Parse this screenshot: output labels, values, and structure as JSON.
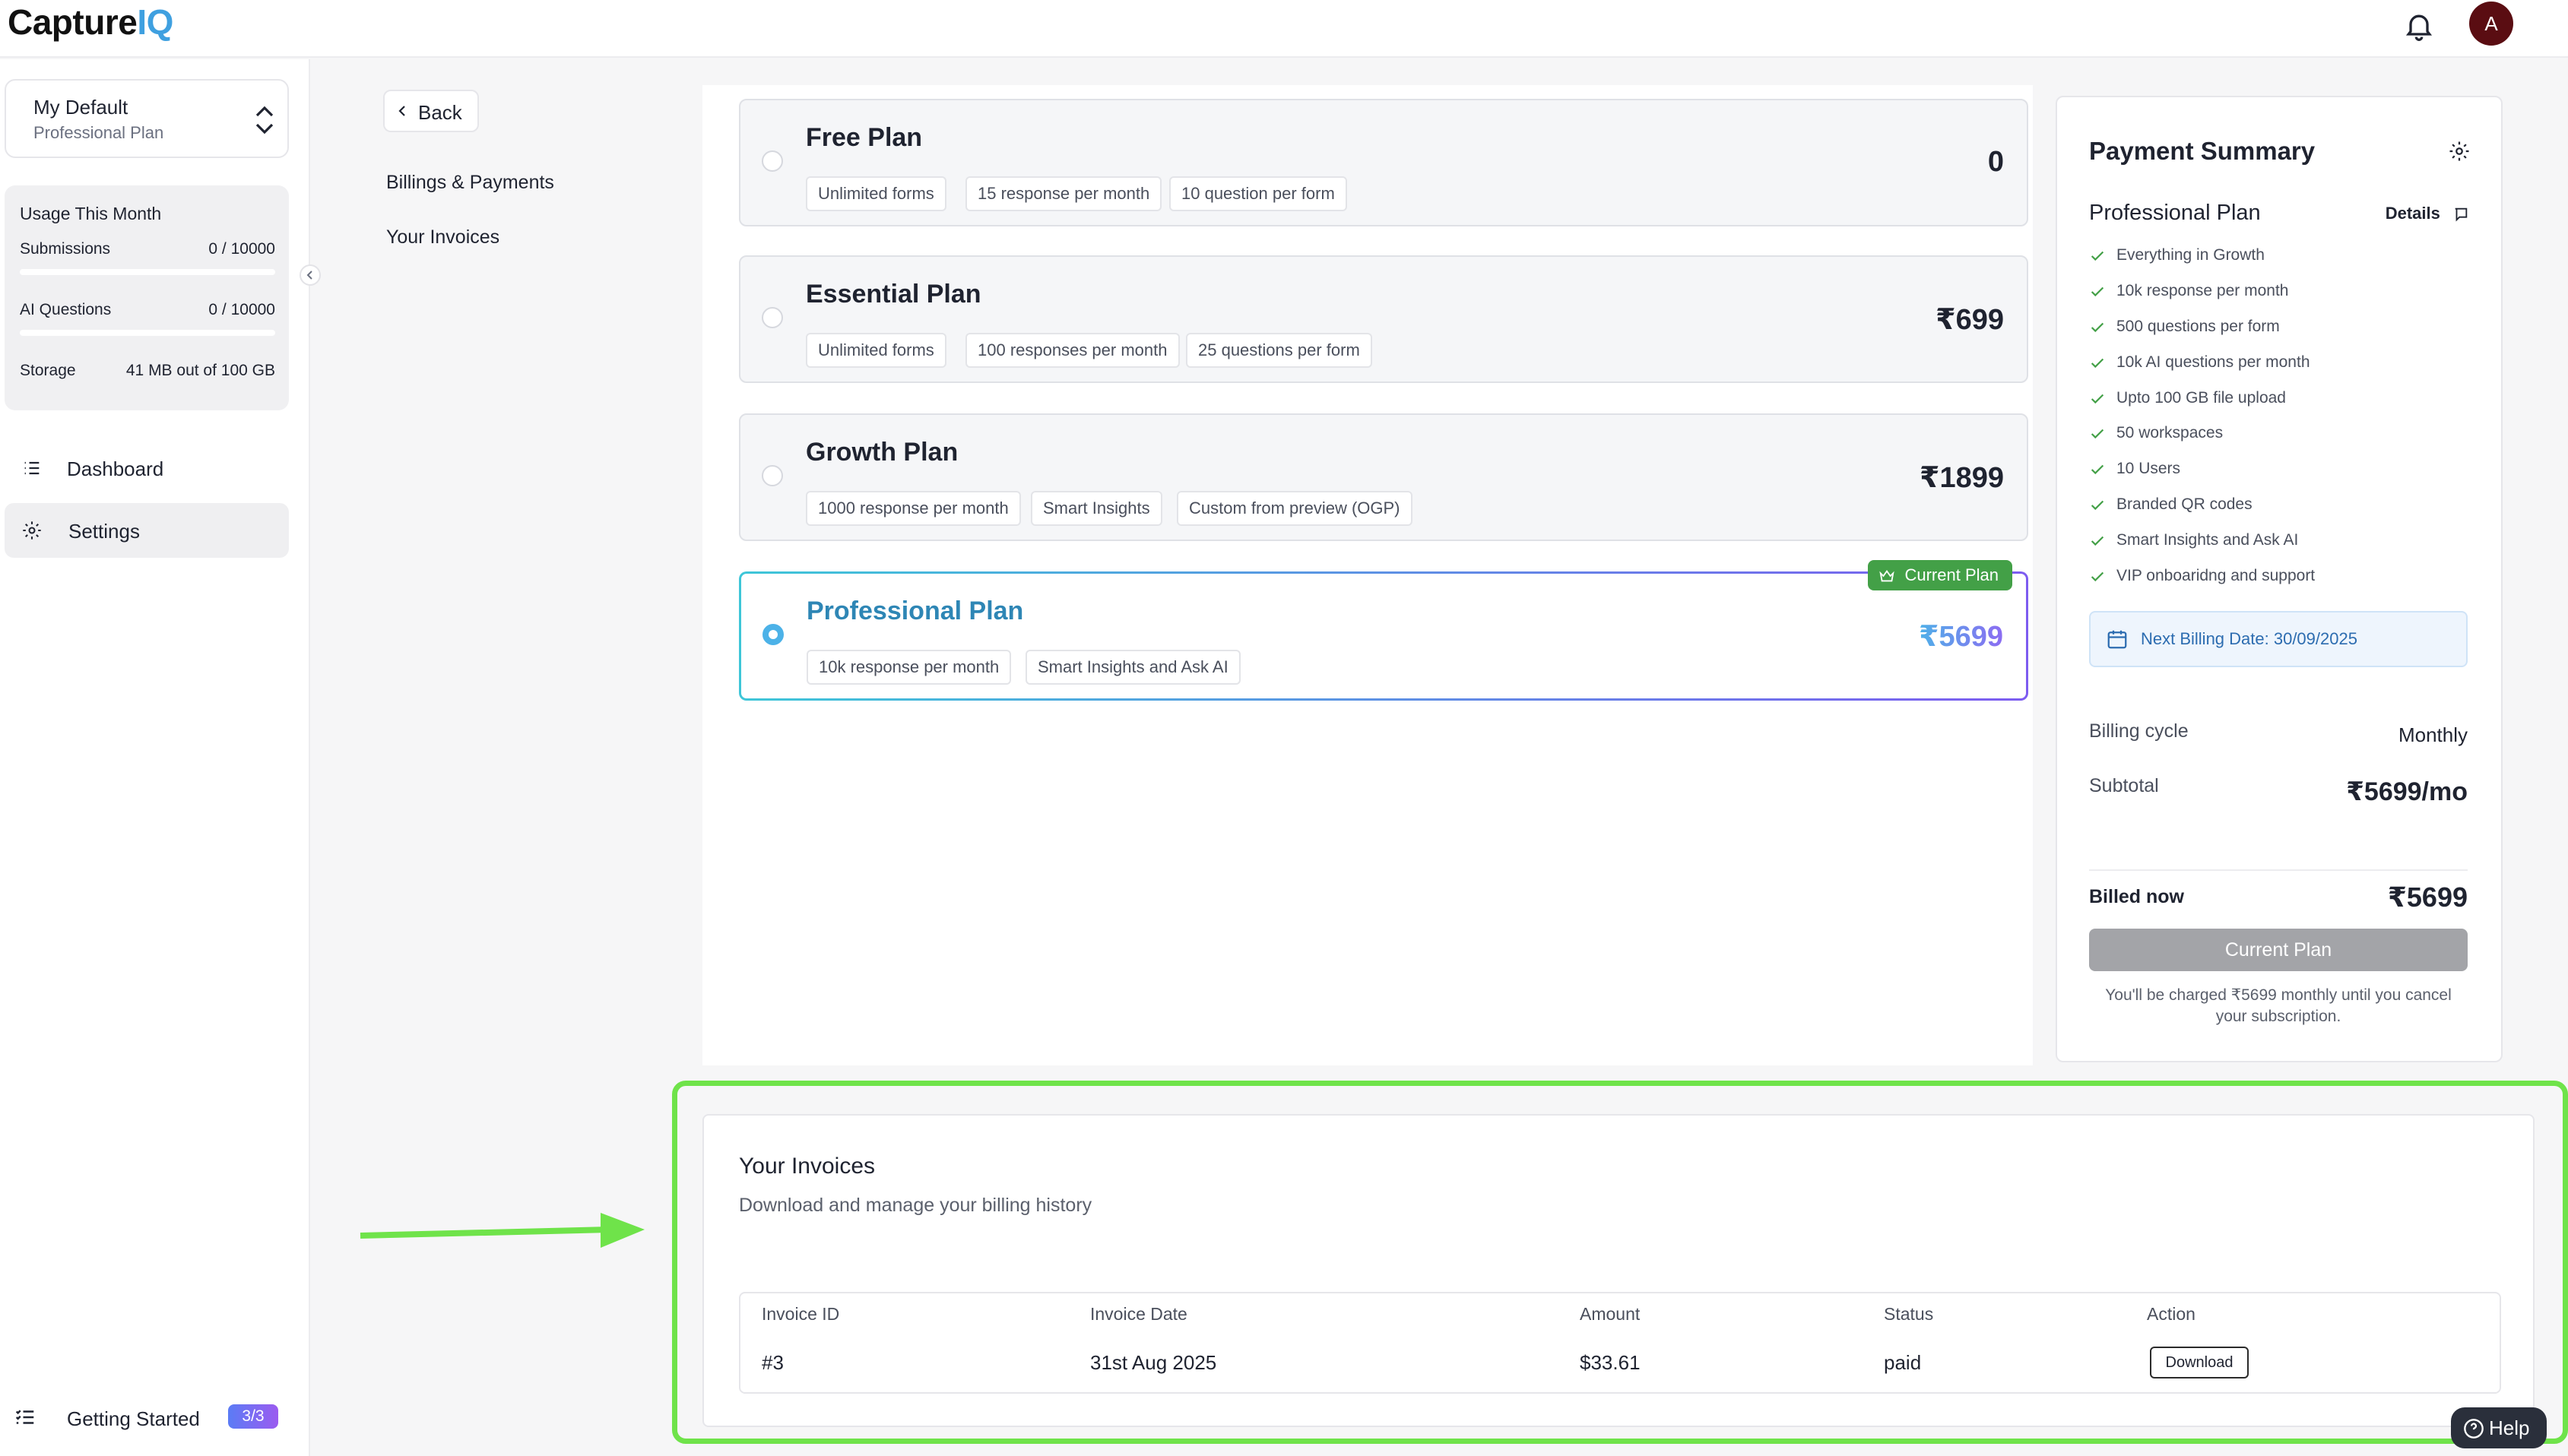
{
  "app": {
    "logo_main": "Capture",
    "logo_accent": "IQ",
    "avatar_initial": "A"
  },
  "workspace": {
    "name": "My Default",
    "plan": "Professional Plan"
  },
  "usage": {
    "title": "Usage This Month",
    "submissions_label": "Submissions",
    "submissions_value": "0 / 10000",
    "submissions_fraction": 0,
    "ai_label": "AI Questions",
    "ai_value": "0 / 10000",
    "ai_fraction": 0,
    "storage_label": "Storage",
    "storage_value": "41 MB out of 100 GB"
  },
  "nav": {
    "dashboard": "Dashboard",
    "settings": "Settings",
    "getting_started": "Getting Started",
    "getting_started_badge": "3/3"
  },
  "subnav": {
    "back": "Back",
    "billings": "Billings & Payments",
    "invoices": "Your Invoices"
  },
  "plans": {
    "free": {
      "name": "Free Plan",
      "price": "0",
      "features": [
        "Unlimited forms",
        "15 response per month",
        "10 question per form"
      ]
    },
    "essential": {
      "name": "Essential Plan",
      "price": "₹699",
      "features": [
        "Unlimited forms",
        "100 responses per month",
        "25 questions per form"
      ]
    },
    "growth": {
      "name": "Growth Plan",
      "price": "₹1899",
      "features": [
        "1000 response per month",
        "Smart Insights",
        "Custom from preview (OGP)"
      ]
    },
    "professional": {
      "name": "Professional Plan",
      "price": "₹5699",
      "features": [
        "10k response per month",
        "Smart Insights and Ask AI"
      ],
      "badge": "Current Plan"
    }
  },
  "summary": {
    "title": "Payment Summary",
    "plan_name": "Professional Plan",
    "details": "Details",
    "features": [
      "Everything in Growth",
      "10k response per month",
      "500 questions per form",
      "10k AI questions per month",
      "Upto 100 GB file upload",
      "50 workspaces",
      "10 Users",
      "Branded QR codes",
      "Smart Insights and Ask AI",
      "VIP onboaridng and support"
    ],
    "next_billing": "Next Billing Date: 30/09/2025",
    "billing_cycle_label": "Billing cycle",
    "billing_cycle_value": "Monthly",
    "subtotal_label": "Subtotal",
    "subtotal_value": "₹5699/mo",
    "billed_now_label": "Billed now",
    "billed_now_value": "₹5699",
    "button": "Current Plan",
    "note": "You'll be charged ₹5699 monthly until you cancel your subscription."
  },
  "invoices": {
    "title": "Your Invoices",
    "subtitle": "Download and manage your billing history",
    "columns": [
      "Invoice ID",
      "Invoice Date",
      "Amount",
      "Status",
      "Action"
    ],
    "rows": [
      {
        "id": "#3",
        "date": "31st Aug 2025",
        "amount": "$33.61",
        "status": "paid",
        "action": "Download"
      }
    ]
  },
  "help": {
    "label": "Help"
  },
  "colors": {
    "accent_green": "#6fe34a",
    "current_badge": "#43a047",
    "brand_blue": "#3fa0e0"
  }
}
